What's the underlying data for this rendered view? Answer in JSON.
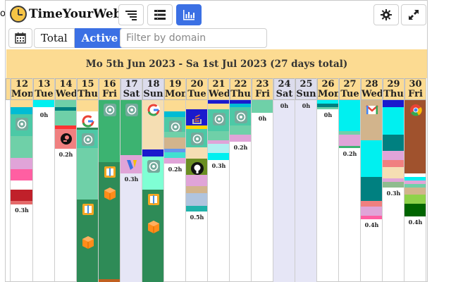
{
  "edge_char": "o",
  "app": {
    "title": "TimeYourWeb"
  },
  "header_buttons": [
    {
      "name": "sort-view-button",
      "icon": "sort-icon",
      "active": false
    },
    {
      "name": "list-view-button",
      "icon": "list-icon",
      "active": false
    },
    {
      "name": "chart-view-button",
      "icon": "bar-chart-icon",
      "active": true
    },
    {
      "name": "settings-button",
      "icon": "gear-icon",
      "active": false
    },
    {
      "name": "expand-button",
      "icon": "expand-icon",
      "active": false
    }
  ],
  "toolbar": {
    "calendar_icon": "calendar-icon",
    "total_label": "Total",
    "active_label": "Active",
    "filter_placeholder": "Filter by domain",
    "filter_value": ""
  },
  "range_label": "Mo 5th Jun 2023 - Sa 1st Jul 2023 (27 days total)",
  "colors": {
    "accent": "#3b70e4",
    "header_bg": "#fcdb92",
    "weekend_bg": "#e6e6f6"
  },
  "days": [
    {
      "num": "",
      "dow": "",
      "weekend": false,
      "label": "",
      "segments": []
    },
    {
      "num": "12",
      "dow": "Mon",
      "weekend": false,
      "label": "0.3h",
      "segments": [
        {
          "h": 0.04,
          "c": "#fcdb92"
        },
        {
          "h": 0.04,
          "c": "#00bcd4"
        },
        {
          "h": 0.12,
          "c": "#4cc9a6",
          "icon": "chatgpt-icon"
        },
        {
          "h": 0.12,
          "c": "#6fd0a8"
        },
        {
          "h": 0.06,
          "c": "#e0a4d8"
        },
        {
          "h": 0.06,
          "c": "#ff5fa2"
        },
        {
          "h": 0.05,
          "c": "#ffffff"
        },
        {
          "h": 0.06,
          "c": "#c0202a"
        },
        {
          "h": 0.02,
          "c": "#e46a6a"
        }
      ]
    },
    {
      "num": "13",
      "dow": "Tue",
      "weekend": false,
      "label": "0h",
      "segments": [
        {
          "h": 0.04,
          "c": "#00f0f0"
        },
        {
          "h": 0.01,
          "c": "#ffffff"
        }
      ]
    },
    {
      "num": "14",
      "dow": "Wed",
      "weekend": false,
      "label": "0.2h",
      "segments": [
        {
          "h": 0.04,
          "c": "#6fd0a8"
        },
        {
          "h": 0.02,
          "c": "#008080"
        },
        {
          "h": 0.08,
          "c": "#6fd0a8"
        },
        {
          "h": 0.02,
          "c": "#ff3333"
        },
        {
          "h": 0.11,
          "c": "#f08080",
          "icon": "postman-icon"
        }
      ]
    },
    {
      "num": "15",
      "dow": "Thu",
      "weekend": false,
      "label": "",
      "segments": [
        {
          "h": 0.06,
          "c": "#fcdb92"
        },
        {
          "h": 0.09,
          "c": "#ffffff",
          "icon": "google-icon"
        },
        {
          "h": 0.01,
          "c": "#2e8b57"
        },
        {
          "h": 0.1,
          "c": "#4cc9a6",
          "icon": "chatgpt-icon"
        },
        {
          "h": 0.28,
          "c": "#6fd0a8"
        },
        {
          "h": 0.18,
          "c": "#2e8b57",
          "icon": "box-icon"
        },
        {
          "h": 0.28,
          "c": "#2e8b57",
          "icon": "cube-icon"
        }
      ]
    },
    {
      "num": "16",
      "dow": "Fri",
      "weekend": false,
      "label": "",
      "segments": [
        {
          "h": 0.12,
          "c": "#3cb371",
          "icon": "chatgpt-icon"
        },
        {
          "h": 0.22,
          "c": "#3cb371"
        },
        {
          "h": 0.12,
          "c": "#2e8b57",
          "icon": "box-icon"
        },
        {
          "h": 0.52,
          "c": "#2e8b57",
          "icon": "cube-icon"
        },
        {
          "h": 0.02,
          "c": "#c06020"
        }
      ]
    },
    {
      "num": "17",
      "dow": "Sat",
      "weekend": true,
      "label": "0.3h",
      "segments": [
        {
          "h": 0.12,
          "c": "#3cb371",
          "icon": "chatgpt-icon"
        },
        {
          "h": 0.18,
          "c": "#3cb371"
        },
        {
          "h": 0.1,
          "c": "#e0a4d8",
          "icon": "nuxt-icon"
        }
      ]
    },
    {
      "num": "18",
      "dow": "Sun",
      "weekend": true,
      "label": "",
      "segments": [
        {
          "h": 0.27,
          "c": "#f5deb3",
          "icon": "google-icon"
        },
        {
          "h": 0.04,
          "c": "#1a1acd"
        },
        {
          "h": 0.18,
          "c": "#7fffd4",
          "icon": "chatgpt-icon"
        },
        {
          "h": 0.15,
          "c": "#2e8b57",
          "icon": "box-icon"
        },
        {
          "h": 0.36,
          "c": "#2e8b57",
          "icon": "cube-icon"
        }
      ]
    },
    {
      "num": "19",
      "dow": "Mon",
      "weekend": false,
      "label": "0.2h",
      "segments": [
        {
          "h": 0.06,
          "c": "#fcdb92"
        },
        {
          "h": 0.03,
          "c": "#00bcd4"
        },
        {
          "h": 0.08,
          "c": "#4cc9a6",
          "icon": "chatgpt-icon"
        },
        {
          "h": 0.03,
          "c": "#6fd0a8"
        },
        {
          "h": 0.06,
          "c": "#d2b48c"
        },
        {
          "h": 0.02,
          "c": "#6495ed"
        },
        {
          "h": 0.03,
          "c": "#40e0d0"
        },
        {
          "h": 0.03,
          "c": "#e0a4d8"
        }
      ]
    },
    {
      "num": "20",
      "dow": "Tue",
      "weekend": false,
      "label": "0.5h",
      "segments": [
        {
          "h": 0.05,
          "c": "#fcdb92"
        },
        {
          "h": 0.09,
          "c": "#1a1acd",
          "icon": "stackoverflow-icon"
        },
        {
          "h": 0.02,
          "c": "#ffd700"
        },
        {
          "h": 0.1,
          "c": "#4cc9a6",
          "icon": "chatgpt-icon"
        },
        {
          "h": 0.06,
          "c": "#f5deb3"
        },
        {
          "h": 0.09,
          "c": "#6b8e23",
          "icon": "github-icon"
        },
        {
          "h": 0.06,
          "c": "#e0a4d8"
        },
        {
          "h": 0.04,
          "c": "#d2b48c"
        },
        {
          "h": 0.07,
          "c": "#b0c4de"
        },
        {
          "h": 0.03,
          "c": "#20b2aa"
        }
      ]
    },
    {
      "num": "21",
      "dow": "Wed",
      "weekend": false,
      "label": "0.3h",
      "segments": [
        {
          "h": 0.02,
          "c": "#1a1acd"
        },
        {
          "h": 0.03,
          "c": "#fcdb92"
        },
        {
          "h": 0.12,
          "c": "#4cc9a6",
          "icon": "chatgpt-icon"
        },
        {
          "h": 0.05,
          "c": "#6fd0a8"
        },
        {
          "h": 0.02,
          "c": "#e0a4d8"
        },
        {
          "h": 0.05,
          "c": "#b0f0f0"
        },
        {
          "h": 0.04,
          "c": "#00f0f0"
        }
      ]
    },
    {
      "num": "22",
      "dow": "Thu",
      "weekend": false,
      "label": "0.2h",
      "segments": [
        {
          "h": 0.02,
          "c": "#1a1acd"
        },
        {
          "h": 0.02,
          "c": "#00bcd4"
        },
        {
          "h": 0.1,
          "c": "#4cc9a6",
          "icon": "chatgpt-icon"
        },
        {
          "h": 0.05,
          "c": "#6fd0a8"
        },
        {
          "h": 0.04,
          "c": "#e0a4d8"
        }
      ]
    },
    {
      "num": "23",
      "dow": "Fri",
      "weekend": false,
      "label": "0h",
      "segments": [
        {
          "h": 0.07,
          "c": "#6fd0a8"
        }
      ]
    },
    {
      "num": "24",
      "dow": "Sat",
      "weekend": true,
      "label": "0h",
      "segments": []
    },
    {
      "num": "25",
      "dow": "Sun",
      "weekend": true,
      "label": "0h",
      "segments": []
    },
    {
      "num": "26",
      "dow": "Mon",
      "weekend": false,
      "label": "0h",
      "segments": [
        {
          "h": 0.02,
          "c": "#00f0f0"
        },
        {
          "h": 0.02,
          "c": "#008080"
        },
        {
          "h": 0.01,
          "c": "#6fd0a8"
        }
      ]
    },
    {
      "num": "27",
      "dow": "Tue",
      "weekend": false,
      "label": "0.2h",
      "segments": [
        {
          "h": 0.17,
          "c": "#00f0f0"
        },
        {
          "h": 0.02,
          "c": "#6fd0a8"
        },
        {
          "h": 0.06,
          "c": "#e0a4d8"
        },
        {
          "h": 0.01,
          "c": "#3cb371"
        }
      ]
    },
    {
      "num": "28",
      "dow": "Wed",
      "weekend": false,
      "label": "0.4h",
      "segments": [
        {
          "h": 0.22,
          "c": "#d2b48c",
          "icon": "gmail-icon"
        },
        {
          "h": 0.2,
          "c": "#00f0f0"
        },
        {
          "h": 0.13,
          "c": "#008080"
        },
        {
          "h": 0.03,
          "c": "#f08080"
        },
        {
          "h": 0.05,
          "c": "#e0a4d8"
        },
        {
          "h": 0.02,
          "c": "#ff5fa2"
        }
      ]
    },
    {
      "num": "29",
      "dow": "Thu",
      "weekend": false,
      "label": "0.3h",
      "segments": [
        {
          "h": 0.04,
          "c": "#1a1acd"
        },
        {
          "h": 0.15,
          "c": "#00f0f0"
        },
        {
          "h": 0.09,
          "c": "#008080"
        },
        {
          "h": 0.05,
          "c": "#e0a4d8"
        },
        {
          "h": 0.04,
          "c": "#f08080"
        },
        {
          "h": 0.06,
          "c": "#f5deb3"
        },
        {
          "h": 0.02,
          "c": "#e0a4d8"
        },
        {
          "h": 0.03,
          "c": "#8fbc8f"
        }
      ]
    },
    {
      "num": "30",
      "dow": "Fri",
      "weekend": false,
      "label": "0.4h",
      "segments": [
        {
          "h": 0.4,
          "c": "#a0522d",
          "icon": "chrome-icon"
        },
        {
          "h": 0.02,
          "c": "#ffffff"
        },
        {
          "h": 0.02,
          "c": "#00f0f0"
        },
        {
          "h": 0.02,
          "c": "#e0a4d8"
        },
        {
          "h": 0.02,
          "c": "#6fd0a8"
        },
        {
          "h": 0.04,
          "c": "#d2b48c"
        },
        {
          "h": 0.05,
          "c": "#8fd24a"
        },
        {
          "h": 0.07,
          "c": "#006400"
        }
      ]
    }
  ]
}
